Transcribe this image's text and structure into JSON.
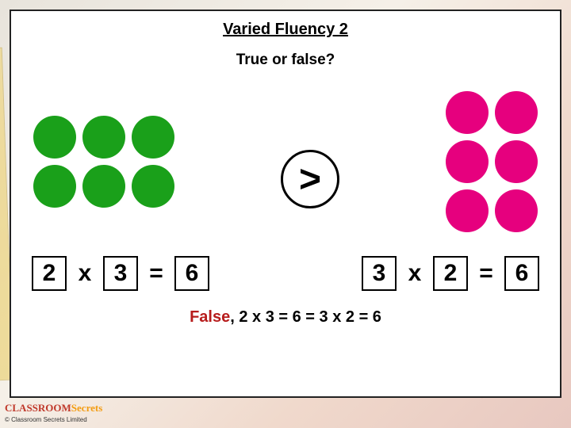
{
  "title": "Varied Fluency 2",
  "subtitle": "True or false?",
  "left_array": {
    "rows": 2,
    "cols": 3,
    "dot_color": "#1aa01a"
  },
  "right_array": {
    "rows": 3,
    "cols": 2,
    "dot_color": "#e6007e"
  },
  "comparator": ">",
  "equation_left": {
    "a": "2",
    "op1": "x",
    "b": "3",
    "op2": "=",
    "c": "6"
  },
  "equation_right": {
    "a": "3",
    "op1": "x",
    "b": "2",
    "op2": "=",
    "c": "6"
  },
  "answer_prefix": "False",
  "answer_rest": ", 2 x 3 = 6 = 3 x 2 = 6",
  "footer_logo_1": "CLASSROOM",
  "footer_logo_2": "Secrets",
  "footer_copyright": "© Classroom Secrets Limited"
}
